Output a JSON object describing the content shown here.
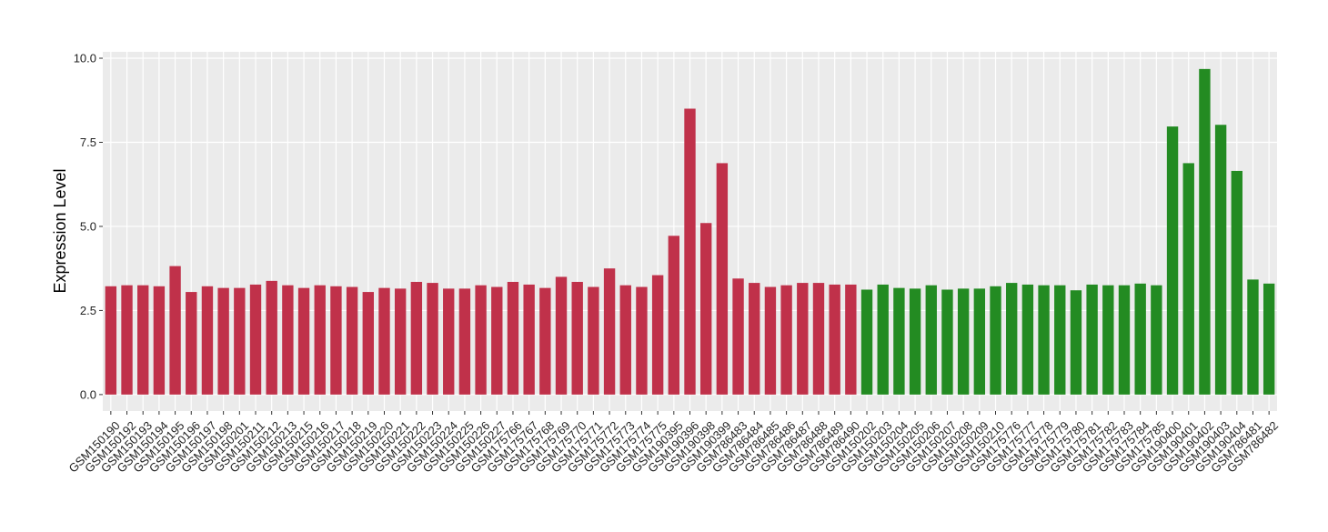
{
  "chart_data": {
    "type": "bar",
    "y_label": "Expression Level",
    "categories": [
      "GSM150190",
      "GSM150192",
      "GSM150193",
      "GSM150194",
      "GSM150195",
      "GSM150196",
      "GSM150197",
      "GSM150198",
      "GSM150201",
      "GSM150211",
      "GSM150212",
      "GSM150213",
      "GSM150215",
      "GSM150216",
      "GSM150217",
      "GSM150218",
      "GSM150219",
      "GSM150220",
      "GSM150221",
      "GSM150222",
      "GSM150223",
      "GSM150224",
      "GSM150225",
      "GSM150226",
      "GSM150227",
      "GSM175766",
      "GSM175767",
      "GSM175768",
      "GSM175769",
      "GSM175770",
      "GSM175771",
      "GSM175772",
      "GSM175773",
      "GSM175774",
      "GSM175775",
      "GSM190395",
      "GSM190396",
      "GSM190398",
      "GSM190399",
      "GSM786483",
      "GSM786484",
      "GSM786485",
      "GSM786486",
      "GSM786487",
      "GSM786488",
      "GSM786489",
      "GSM786490",
      "GSM150202",
      "GSM150203",
      "GSM150204",
      "GSM150205",
      "GSM150206",
      "GSM150207",
      "GSM150208",
      "GSM150209",
      "GSM150210",
      "GSM175776",
      "GSM175777",
      "GSM175778",
      "GSM175779",
      "GSM175780",
      "GSM175781",
      "GSM175782",
      "GSM175783",
      "GSM175784",
      "GSM175785",
      "GSM190400",
      "GSM190401",
      "GSM190402",
      "GSM190403",
      "GSM190404",
      "GSM786481",
      "GSM786482"
    ],
    "series": [
      {
        "color": "#c0314a",
        "values": [
          3.22,
          3.25,
          3.25,
          3.22,
          3.82,
          3.05,
          3.22,
          3.17,
          3.17,
          3.27,
          3.38,
          3.25,
          3.17,
          3.25,
          3.22,
          3.2,
          3.05,
          3.17,
          3.15,
          3.35,
          3.32,
          3.15,
          3.15,
          3.25,
          3.2,
          3.35,
          3.27,
          3.17,
          3.5,
          3.35,
          3.2,
          3.75,
          3.25,
          3.2,
          3.55,
          4.72,
          8.5,
          5.1,
          6.88,
          3.45,
          3.32,
          3.2,
          3.25,
          3.32,
          3.32,
          3.27,
          3.27,
          null,
          null,
          null,
          null,
          null,
          null,
          null,
          null,
          null,
          null,
          null,
          null,
          null,
          null,
          null,
          null,
          null,
          null,
          null,
          null,
          null,
          null,
          null,
          null,
          null,
          null
        ]
      },
      {
        "color": "#238b22",
        "values": [
          null,
          null,
          null,
          null,
          null,
          null,
          null,
          null,
          null,
          null,
          null,
          null,
          null,
          null,
          null,
          null,
          null,
          null,
          null,
          null,
          null,
          null,
          null,
          null,
          null,
          null,
          null,
          null,
          null,
          null,
          null,
          null,
          null,
          null,
          null,
          null,
          null,
          null,
          null,
          null,
          null,
          null,
          null,
          null,
          null,
          null,
          null,
          3.12,
          3.27,
          3.17,
          3.15,
          3.25,
          3.12,
          3.15,
          3.15,
          3.22,
          3.32,
          3.27,
          3.25,
          3.25,
          3.1,
          3.27,
          3.25,
          3.25,
          3.3,
          3.25,
          7.97,
          6.88,
          9.68,
          8.02,
          6.65,
          3.42,
          3.3
        ]
      }
    ],
    "ylim": [
      -0.49,
      10.19
    ],
    "yticks": [
      {
        "value": 0,
        "label": "0.0"
      },
      {
        "value": 2.5,
        "label": "2.5"
      },
      {
        "value": 5,
        "label": "5.0"
      },
      {
        "value": 7.5,
        "label": "7.5"
      },
      {
        "value": 10,
        "label": "10.0"
      }
    ],
    "grid": true
  }
}
